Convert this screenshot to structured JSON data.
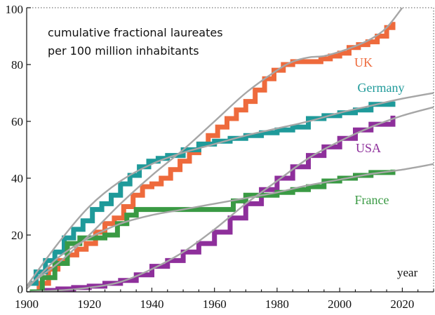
{
  "chart_data": {
    "type": "line",
    "annotation_lines": [
      "cumulative fractional laureates",
      "per 100 million inhabitants"
    ],
    "xlabel": "year",
    "ylabel": "",
    "xlim": [
      1900,
      2030
    ],
    "ylim": [
      0,
      100
    ],
    "x_ticks": [
      1900,
      1920,
      1940,
      1960,
      1980,
      2000,
      2020
    ],
    "y_ticks": [
      0,
      20,
      40,
      60,
      80,
      100
    ],
    "grid": false,
    "legend": "inline labels at line ends",
    "colors": {
      "UK": "#ee6a3c",
      "Germany": "#1f9a9a",
      "USA": "#8e2f9b",
      "France": "#3a9a44",
      "fit": "#a6a6a6"
    },
    "series": [
      {
        "name": "UK",
        "x": [
          1901,
          1904,
          1907,
          1910,
          1913,
          1916,
          1919,
          1922,
          1925,
          1928,
          1931,
          1934,
          1937,
          1940,
          1943,
          1946,
          1949,
          1952,
          1955,
          1958,
          1961,
          1964,
          1967,
          1970,
          1973,
          1976,
          1979,
          1982,
          1985,
          1988,
          1991,
          1994,
          1997,
          2000,
          2003,
          2006,
          2009,
          2012,
          2015,
          2017
        ],
        "y": [
          0,
          3,
          8,
          11,
          13,
          15,
          17,
          21,
          24,
          26,
          30,
          34,
          37,
          38,
          40,
          43,
          46,
          49,
          52,
          55,
          58,
          61,
          64,
          67,
          71,
          75,
          78,
          80,
          81,
          81,
          81,
          82,
          83,
          84,
          86,
          87,
          88,
          90,
          93,
          95
        ]
      },
      {
        "name": "Germany",
        "x": [
          1901,
          1903,
          1906,
          1909,
          1912,
          1915,
          1918,
          1921,
          1924,
          1927,
          1930,
          1933,
          1936,
          1939,
          1942,
          1945,
          1950,
          1955,
          1960,
          1965,
          1970,
          1975,
          1980,
          1985,
          1990,
          1995,
          2000,
          2005,
          2010,
          2017
        ],
        "y": [
          3,
          7,
          11,
          14,
          19,
          22,
          25,
          29,
          31,
          34,
          38,
          41,
          44,
          46,
          47,
          48,
          50,
          52,
          53,
          54,
          55,
          56,
          57,
          58,
          61,
          62,
          63,
          64,
          66,
          67
        ]
      },
      {
        "name": "USA",
        "x": [
          1901,
          1905,
          1910,
          1915,
          1920,
          1925,
          1930,
          1935,
          1940,
          1945,
          1950,
          1955,
          1960,
          1965,
          1970,
          1975,
          1980,
          1985,
          1990,
          1995,
          2000,
          2005,
          2010,
          2017
        ],
        "y": [
          0,
          0.5,
          1,
          1.5,
          2,
          3,
          4,
          6,
          9,
          11,
          14,
          17,
          21,
          26,
          31,
          36,
          40,
          44,
          48,
          51,
          54,
          57,
          59,
          62
        ]
      },
      {
        "name": "France",
        "x": [
          1901,
          1905,
          1909,
          1913,
          1917,
          1921,
          1925,
          1929,
          1932,
          1935,
          1940,
          1945,
          1950,
          1955,
          1960,
          1964,
          1966,
          1970,
          1975,
          1980,
          1985,
          1990,
          1995,
          2000,
          2005,
          2010,
          2017
        ],
        "y": [
          0,
          5,
          10,
          17,
          19,
          19,
          20,
          24,
          27,
          29,
          29,
          29,
          29,
          29,
          29,
          29,
          32,
          34,
          34,
          35,
          36,
          37,
          39,
          40,
          41,
          42,
          43
        ]
      }
    ],
    "fits": [
      {
        "for": "UK",
        "x": [
          1900,
          1910,
          1920,
          1930,
          1940,
          1950,
          1960,
          1970,
          1980,
          1985,
          1990,
          1995,
          2000,
          2005,
          2010,
          2015,
          2020
        ],
        "y": [
          2,
          10,
          20,
          31,
          41,
          50,
          60,
          70,
          78,
          81,
          82.5,
          83,
          84.5,
          86.5,
          89,
          93,
          100
        ]
      },
      {
        "for": "Germany",
        "x": [
          1900,
          1910,
          1920,
          1930,
          1940,
          1950,
          1960,
          1970,
          1980,
          1990,
          2000,
          2010,
          2020,
          2030
        ],
        "y": [
          2,
          17,
          30,
          39,
          45,
          49,
          52,
          55,
          57.5,
          60,
          63,
          65.5,
          68,
          70
        ]
      },
      {
        "for": "USA",
        "x": [
          1900,
          1910,
          1920,
          1930,
          1940,
          1950,
          1960,
          1970,
          1980,
          1990,
          2000,
          2010,
          2020,
          2030
        ],
        "y": [
          0,
          0.5,
          1.5,
          3.5,
          8,
          14,
          22,
          31,
          39,
          47,
          53,
          58,
          62,
          65
        ]
      },
      {
        "for": "France",
        "x": [
          1900,
          1910,
          1920,
          1930,
          1940,
          1950,
          1960,
          1970,
          1980,
          1990,
          2000,
          2010,
          2020,
          2030
        ],
        "y": [
          1,
          12,
          19,
          24,
          27,
          29,
          31,
          33,
          35,
          37.5,
          39.5,
          41.5,
          43,
          45
        ]
      }
    ]
  }
}
